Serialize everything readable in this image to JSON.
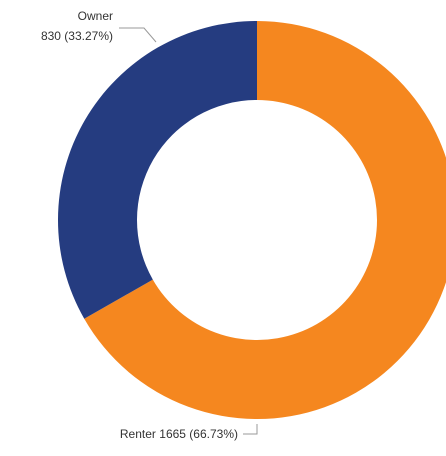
{
  "chart_data": {
    "type": "donut",
    "categories": [
      "Renter",
      "Owner"
    ],
    "values": [
      1665,
      830
    ],
    "value_labels": [
      "1665 (66.73%)",
      "830 (33.27%)"
    ],
    "colors": [
      "#f5871f",
      "#253c80"
    ]
  }
}
